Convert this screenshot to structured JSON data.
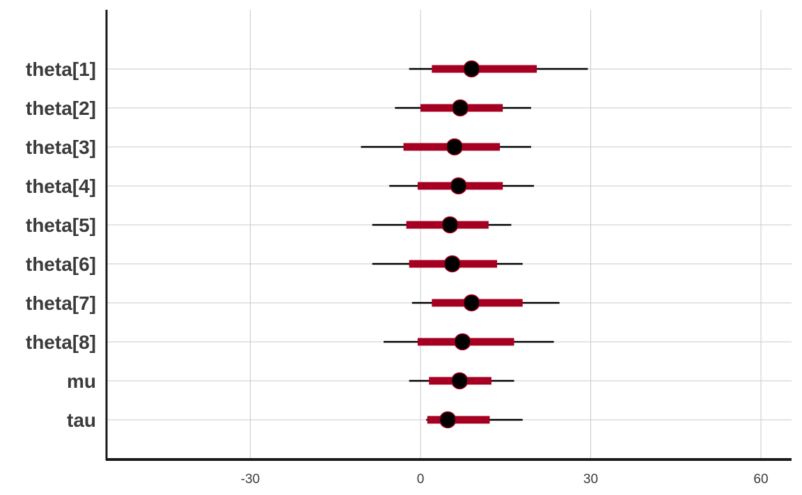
{
  "chart_data": {
    "type": "interval",
    "xlim": [
      -55,
      65
    ],
    "x_ticks": [
      -30,
      0,
      30,
      60
    ],
    "x_tick_labels": [
      "-30",
      "0",
      "30",
      "60"
    ],
    "grid": true,
    "colors": {
      "inner": "#a50021",
      "outer": "#000000",
      "point": "#000000",
      "grid": "#c8c8c8",
      "axis": "#1a1a1a"
    },
    "parameters": [
      {
        "label": "theta[1]",
        "outer": [
          -2,
          29.5
        ],
        "inner": [
          2,
          20.5
        ],
        "point": 9
      },
      {
        "label": "theta[2]",
        "outer": [
          -4.5,
          19.5
        ],
        "inner": [
          0,
          14.5
        ],
        "point": 7
      },
      {
        "label": "theta[3]",
        "outer": [
          -10.5,
          19.5
        ],
        "inner": [
          -3,
          14
        ],
        "point": 6
      },
      {
        "label": "theta[4]",
        "outer": [
          -5.5,
          20
        ],
        "inner": [
          -0.5,
          14.5
        ],
        "point": 6.7
      },
      {
        "label": "theta[5]",
        "outer": [
          -8.5,
          16
        ],
        "inner": [
          -2.5,
          12
        ],
        "point": 5.2
      },
      {
        "label": "theta[6]",
        "outer": [
          -8.5,
          18
        ],
        "inner": [
          -2,
          13.5
        ],
        "point": 5.6
      },
      {
        "label": "theta[7]",
        "outer": [
          -1.5,
          24.5
        ],
        "inner": [
          2,
          18
        ],
        "point": 9
      },
      {
        "label": "theta[8]",
        "outer": [
          -6.5,
          23.5
        ],
        "inner": [
          -0.5,
          16.5
        ],
        "point": 7.4
      },
      {
        "label": "mu",
        "outer": [
          -2,
          16.5
        ],
        "inner": [
          1.5,
          12.5
        ],
        "point": 6.9
      },
      {
        "label": "tau",
        "outer": [
          1,
          18
        ],
        "inner": [
          1.2,
          12.2
        ],
        "point": 4.8
      }
    ]
  }
}
